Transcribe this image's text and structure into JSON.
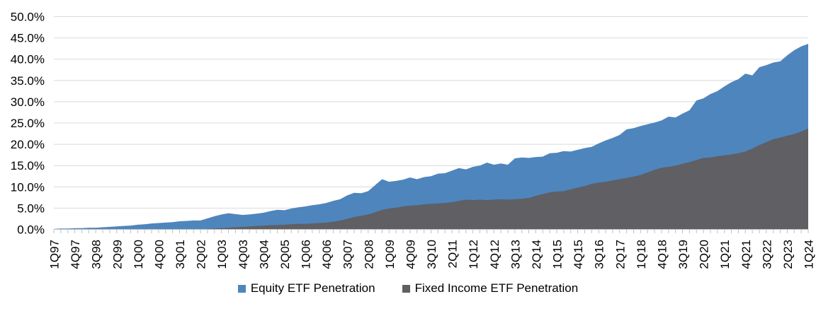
{
  "chart_data": {
    "type": "area",
    "mode": "overlapping",
    "frequency": "quarterly",
    "x_range": [
      "1Q97",
      "1Q24"
    ],
    "points": 109,
    "label_every": 3,
    "grid": true,
    "legend_position": "bottom",
    "ylim": [
      0,
      50
    ],
    "y_tick_labels": [
      "50.0%",
      "45.0%",
      "40.0%",
      "35.0%",
      "30.0%",
      "25.0%",
      "20.0%",
      "15.0%",
      "10.0%",
      "5.0%",
      "0.0%"
    ],
    "x_tick_labels": [
      "1Q97",
      "4Q97",
      "3Q98",
      "2Q99",
      "1Q00",
      "4Q00",
      "3Q01",
      "2Q02",
      "1Q03",
      "4Q03",
      "3Q04",
      "2Q05",
      "1Q06",
      "4Q06",
      "3Q07",
      "2Q08",
      "1Q09",
      "4Q09",
      "3Q10",
      "2Q11",
      "1Q12",
      "4Q12",
      "3Q13",
      "2Q14",
      "1Q15",
      "4Q15",
      "3Q16",
      "2Q17",
      "1Q18",
      "4Q18",
      "3Q19",
      "2Q20",
      "1Q21",
      "4Q21",
      "3Q22",
      "2Q23",
      "1Q24"
    ],
    "axis_color": "#bfbfbf",
    "gridline_color": "#d9d9d9",
    "series": [
      {
        "name": "Equity ETF Penetration",
        "color": "#4e85bd",
        "values": [
          0.1,
          0.2,
          0.2,
          0.3,
          0.3,
          0.4,
          0.4,
          0.5,
          0.6,
          0.7,
          0.8,
          0.9,
          1.1,
          1.2,
          1.4,
          1.5,
          1.6,
          1.7,
          1.9,
          2.0,
          2.1,
          2.1,
          2.6,
          3.1,
          3.5,
          3.8,
          3.6,
          3.4,
          3.5,
          3.7,
          3.9,
          4.3,
          4.6,
          4.5,
          4.9,
          5.2,
          5.4,
          5.7,
          5.9,
          6.2,
          6.7,
          7.1,
          8.0,
          8.6,
          8.5,
          9.0,
          10.4,
          11.8,
          11.2,
          11.4,
          11.7,
          12.2,
          11.8,
          12.3,
          12.5,
          13.1,
          13.2,
          13.8,
          14.4,
          14.1,
          14.7,
          15.0,
          15.7,
          15.2,
          15.5,
          15.2,
          16.7,
          16.9,
          16.8,
          17.0,
          17.1,
          17.9,
          18.0,
          18.4,
          18.3,
          18.7,
          19.1,
          19.4,
          20.2,
          20.9,
          21.5,
          22.2,
          23.5,
          23.8,
          24.3,
          24.7,
          25.1,
          25.6,
          26.5,
          26.3,
          27.2,
          28.0,
          30.3,
          30.8,
          31.8,
          32.5,
          33.6,
          34.6,
          35.3,
          36.6,
          36.2,
          38.1,
          38.6,
          39.2,
          39.5,
          40.9,
          42.1,
          43.0,
          43.6
        ]
      },
      {
        "name": "Fixed Income ETF Penetration",
        "color": "#5f5f64",
        "values": [
          0,
          0,
          0,
          0,
          0,
          0,
          0,
          0,
          0,
          0,
          0,
          0,
          0,
          0,
          0,
          0,
          0,
          0,
          0,
          0,
          0,
          0,
          0.1,
          0.2,
          0.3,
          0.4,
          0.5,
          0.6,
          0.7,
          0.8,
          0.9,
          1.0,
          1.0,
          1.1,
          1.2,
          1.3,
          1.3,
          1.4,
          1.5,
          1.6,
          1.8,
          2.1,
          2.5,
          2.9,
          3.2,
          3.5,
          4.0,
          4.6,
          4.9,
          5.1,
          5.4,
          5.6,
          5.7,
          5.9,
          6.0,
          6.1,
          6.2,
          6.4,
          6.7,
          7.0,
          6.9,
          7.0,
          6.9,
          7.0,
          7.1,
          7.0,
          7.1,
          7.2,
          7.4,
          7.9,
          8.3,
          8.7,
          8.9,
          9.0,
          9.4,
          9.8,
          10.2,
          10.7,
          11.0,
          11.2,
          11.5,
          11.8,
          12.1,
          12.4,
          12.8,
          13.4,
          14.0,
          14.5,
          14.7,
          15.0,
          15.4,
          15.8,
          16.3,
          16.8,
          16.9,
          17.2,
          17.4,
          17.6,
          17.9,
          18.3,
          19.0,
          19.8,
          20.5,
          21.2,
          21.6,
          22.0,
          22.4,
          23.0,
          23.7
        ]
      }
    ]
  }
}
